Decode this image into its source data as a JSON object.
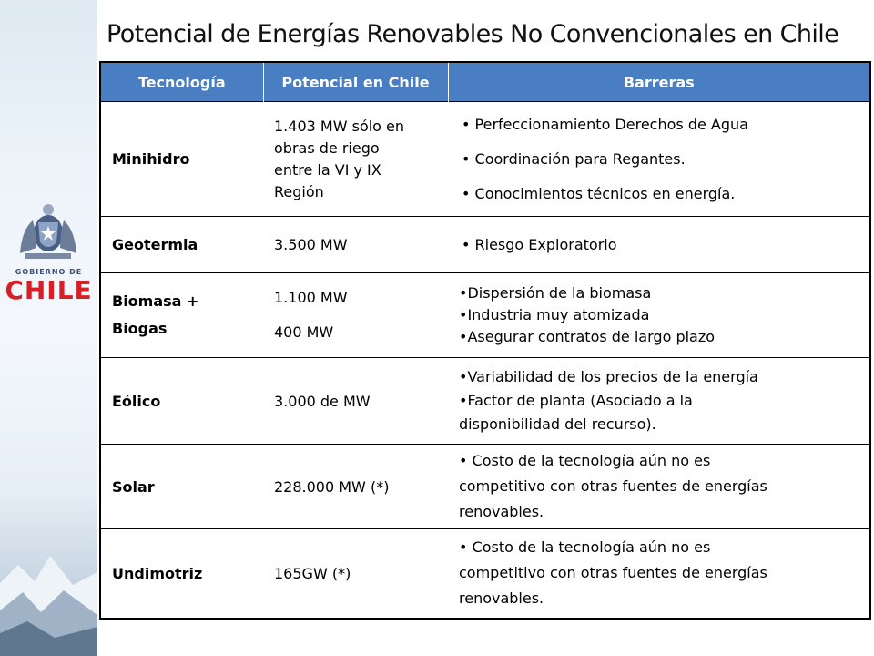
{
  "logo": {
    "line1": "GOBIERNO DE",
    "line2": "CHILE"
  },
  "title": "Potencial de Energías Renovables No Convencionales en Chile",
  "table": {
    "headers": [
      "Tecnología",
      "Potencial en Chile",
      "Barreras"
    ],
    "rows": [
      {
        "tech": "Minihidro",
        "potential": [
          "1.403 MW sólo en",
          "obras de riego",
          "entre la VI y IX",
          "Región"
        ],
        "barriers": [
          "• Perfeccionamiento Derechos de Agua",
          "• Coordinación para Regantes.",
          "• Conocimientos técnicos en energía."
        ]
      },
      {
        "tech": "Geotermia",
        "potential": [
          "3.500 MW"
        ],
        "barriers": [
          "• Riesgo Exploratorio"
        ]
      },
      {
        "tech": [
          "Biomasa +",
          "Biogas"
        ],
        "potential": [
          "1.100 MW",
          "400 MW"
        ],
        "barriers": [
          "•Dispersión de la biomasa",
          "•Industria muy atomizada",
          "•Asegurar contratos de largo plazo"
        ]
      },
      {
        "tech": "Eólico",
        "potential": [
          "3.000 de MW"
        ],
        "barriers": [
          "•Variabilidad de los precios de la energía",
          "•Factor de planta (Asociado a la",
          "disponibilidad del recurso)."
        ]
      },
      {
        "tech": "Solar",
        "potential": [
          "228.000 MW (*)"
        ],
        "barriers": [
          "• Costo de la tecnología aún no es",
          "competitivo con otras fuentes de energías",
          "renovables."
        ]
      },
      {
        "tech": "Undimotriz",
        "potential": [
          "165GW (*)"
        ],
        "barriers": [
          "• Costo de la tecnología aún no es",
          "competitivo con otras fuentes de energías",
          "renovables."
        ]
      }
    ]
  },
  "colors": {
    "header_bg": "#4a7ec3",
    "logo_red": "#d61f26",
    "logo_blue": "#3b4f7a"
  }
}
